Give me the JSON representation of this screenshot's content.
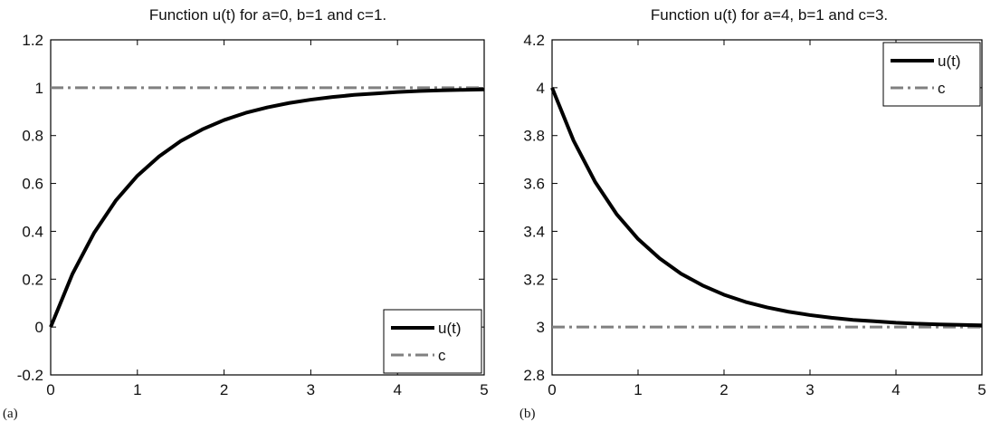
{
  "figure": {
    "background": "#ffffff"
  },
  "chart_data": [
    {
      "type": "line",
      "panel_label": "(a)",
      "title": "Function u(t) for a=0, b=1 and c=1.",
      "xlabel": "",
      "ylabel": "",
      "xlim": [
        0,
        5
      ],
      "ylim": [
        -0.2,
        1.2
      ],
      "xticks": [
        0,
        1,
        2,
        3,
        4,
        5
      ],
      "xtick_labels": [
        "0",
        "1",
        "2",
        "3",
        "4",
        "5"
      ],
      "yticks": [
        -0.2,
        0,
        0.2,
        0.4,
        0.6,
        0.8,
        1,
        1.2
      ],
      "ytick_labels": [
        "-0.2",
        "0",
        "0.2",
        "0.4",
        "0.6",
        "0.8",
        "1",
        "1.2"
      ],
      "grid": false,
      "legend_position": "bottom-right",
      "series": [
        {
          "name": "u(t)",
          "style": "solid",
          "color": "#000000",
          "x": [
            0,
            0.25,
            0.5,
            0.75,
            1,
            1.25,
            1.5,
            1.75,
            2,
            2.25,
            2.5,
            2.75,
            3,
            3.25,
            3.5,
            3.75,
            4,
            4.25,
            4.5,
            4.75,
            5
          ],
          "y": [
            0,
            0.221,
            0.393,
            0.528,
            0.632,
            0.713,
            0.777,
            0.826,
            0.865,
            0.895,
            0.918,
            0.936,
            0.95,
            0.961,
            0.97,
            0.976,
            0.982,
            0.986,
            0.989,
            0.991,
            0.993
          ]
        },
        {
          "name": "c",
          "style": "dash-dot",
          "color": "#808080",
          "x": [
            0,
            5
          ],
          "y": [
            1,
            1
          ]
        }
      ]
    },
    {
      "type": "line",
      "panel_label": "(b)",
      "title": "Function u(t) for a=4, b=1 and c=3.",
      "xlabel": "",
      "ylabel": "",
      "xlim": [
        0,
        5
      ],
      "ylim": [
        2.8,
        4.2
      ],
      "xticks": [
        0,
        1,
        2,
        3,
        4,
        5
      ],
      "xtick_labels": [
        "0",
        "1",
        "2",
        "3",
        "4",
        "5"
      ],
      "yticks": [
        2.8,
        3,
        3.2,
        3.4,
        3.6,
        3.8,
        4,
        4.2
      ],
      "ytick_labels": [
        "2.8",
        "3",
        "3.2",
        "3.4",
        "3.6",
        "3.8",
        "4",
        "4.2"
      ],
      "grid": false,
      "legend_position": "top-right",
      "series": [
        {
          "name": "u(t)",
          "style": "solid",
          "color": "#000000",
          "x": [
            0,
            0.25,
            0.5,
            0.75,
            1,
            1.25,
            1.5,
            1.75,
            2,
            2.25,
            2.5,
            2.75,
            3,
            3.25,
            3.5,
            3.75,
            4,
            4.25,
            4.5,
            4.75,
            5
          ],
          "y": [
            4,
            3.779,
            3.607,
            3.472,
            3.368,
            3.287,
            3.223,
            3.174,
            3.135,
            3.105,
            3.082,
            3.064,
            3.05,
            3.039,
            3.03,
            3.024,
            3.018,
            3.014,
            3.011,
            3.009,
            3.007
          ]
        },
        {
          "name": "c",
          "style": "dash-dot",
          "color": "#808080",
          "x": [
            0,
            5
          ],
          "y": [
            3,
            3
          ]
        }
      ]
    }
  ]
}
